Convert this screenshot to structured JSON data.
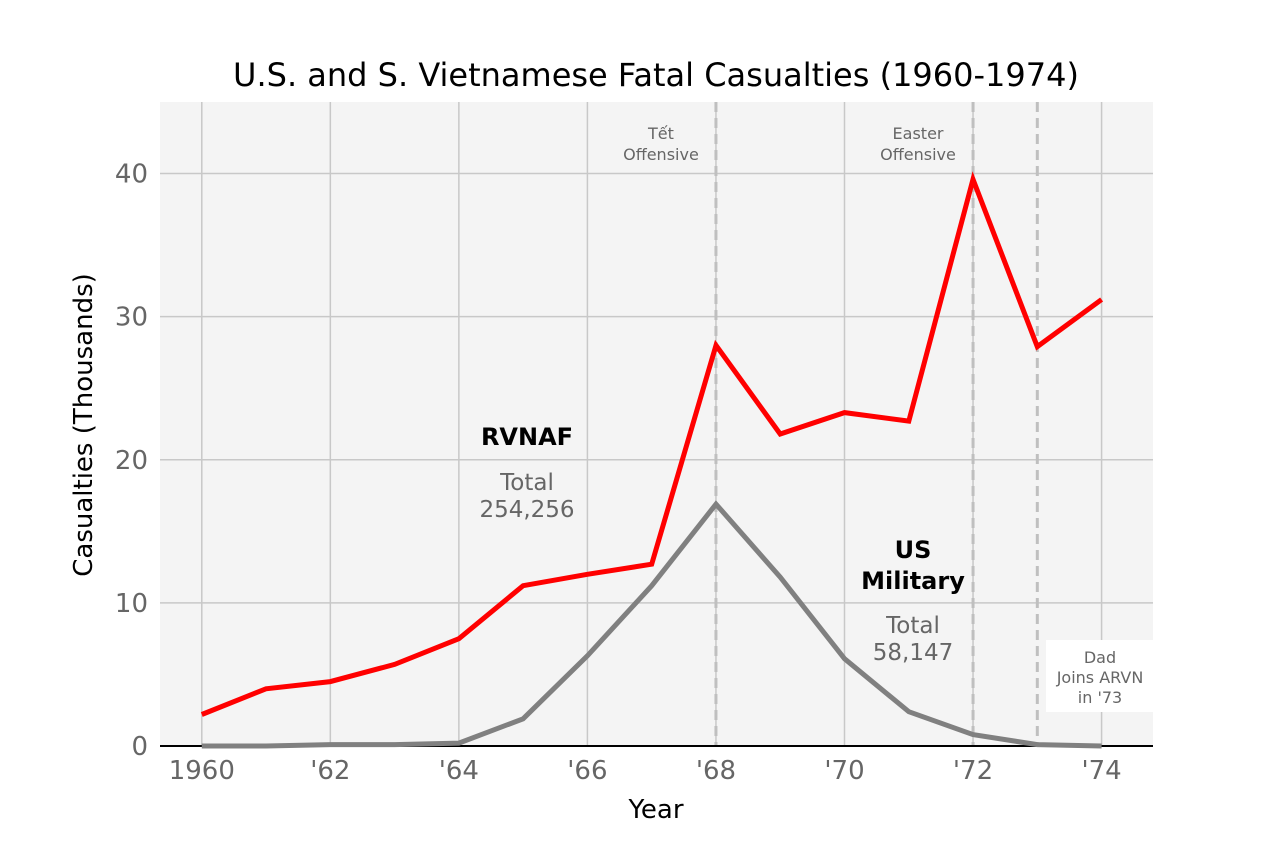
{
  "chart_data": {
    "type": "line",
    "title": "U.S. and S. Vietnamese Fatal Casualties (1960-1974)",
    "xlabel": "Year",
    "ylabel": "Casualties (Thousands)",
    "xlim": [
      1959.35,
      1974.8
    ],
    "ylim": [
      0,
      45
    ],
    "grid": true,
    "x": [
      1960,
      1961,
      1962,
      1963,
      1964,
      1965,
      1966,
      1967,
      1968,
      1969,
      1970,
      1971,
      1972,
      1973,
      1974
    ],
    "x_ticks": [
      {
        "value": 1960,
        "label": "1960"
      },
      {
        "value": 1962,
        "label": "'62"
      },
      {
        "value": 1964,
        "label": "'64"
      },
      {
        "value": 1966,
        "label": "'66"
      },
      {
        "value": 1968,
        "label": "'68"
      },
      {
        "value": 1970,
        "label": "'70"
      },
      {
        "value": 1972,
        "label": "'72"
      },
      {
        "value": 1974,
        "label": "'74"
      }
    ],
    "y_ticks": [
      {
        "value": 0,
        "label": "0"
      },
      {
        "value": 10,
        "label": "10"
      },
      {
        "value": 20,
        "label": "20"
      },
      {
        "value": 30,
        "label": "30"
      },
      {
        "value": 40,
        "label": "40"
      }
    ],
    "series": [
      {
        "name": "RVNAF",
        "color": "#ff0000",
        "total_label": "Total",
        "total_value": "254,256",
        "values": [
          2.2,
          4.0,
          4.5,
          5.7,
          7.5,
          11.2,
          12.0,
          12.7,
          28.0,
          21.8,
          23.3,
          22.7,
          39.6,
          27.9,
          31.2
        ]
      },
      {
        "name_lines": [
          "US",
          "Military"
        ],
        "color": "#808080",
        "total_label": "Total",
        "total_value": "58,147",
        "values": [
          0.0,
          0.0,
          0.1,
          0.1,
          0.2,
          1.9,
          6.3,
          11.2,
          16.9,
          11.8,
          6.1,
          2.4,
          0.8,
          0.1,
          0.0
        ]
      }
    ],
    "annotations": [
      {
        "x": 1968,
        "lines": [
          "Tết",
          "Offensive"
        ]
      },
      {
        "x": 1972,
        "lines": [
          "Easter",
          "Offensive"
        ]
      },
      {
        "x": 1973,
        "lines": []
      }
    ],
    "note_lines": [
      "Dad",
      "Joins ARVN",
      "in '73"
    ]
  },
  "colors": {
    "plot_background": "#f4f4f4",
    "grid": "#c8c8c8",
    "event_line": "#bfbfbf",
    "baseline": "#000000"
  }
}
